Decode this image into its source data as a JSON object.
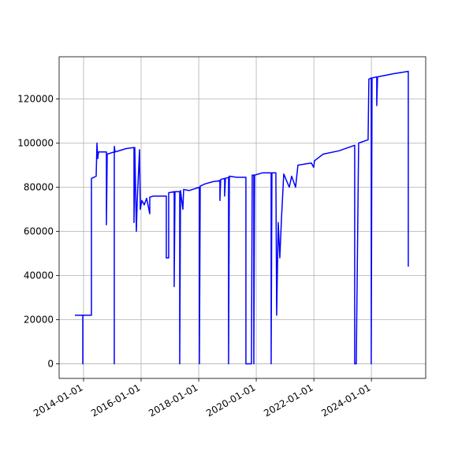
{
  "chart_data": {
    "type": "line",
    "x": [
      "2013-09-13",
      "2013-12-22",
      "2013-12-22",
      "2013-12-22",
      "2014-04-11",
      "2014-04-11",
      "2014-06-10",
      "2014-06-20",
      "2014-06-30",
      "2014-07-10",
      "2014-10-18",
      "2014-10-18",
      "2014-10-28",
      "2015-01-26",
      "2015-01-26",
      "2015-01-26",
      "2015-02-05",
      "2015-06-25",
      "2015-10-03",
      "2015-10-03",
      "2015-10-13",
      "2015-11-02",
      "2015-11-12",
      "2015-12-12",
      "2015-12-22",
      "2016-01-11",
      "2016-02-10",
      "2016-03-11",
      "2016-04-20",
      "2016-04-20",
      "2016-06-09",
      "2016-11-16",
      "2016-11-16",
      "2016-12-16",
      "2016-12-16",
      "2017-02-24",
      "2017-02-24",
      "2017-03-06",
      "2017-05-05",
      "2017-05-05",
      "2017-05-15",
      "2017-06-14",
      "2017-06-24",
      "2017-09-02",
      "2018-01-10",
      "2018-01-10",
      "2018-01-20",
      "2018-03-21",
      "2018-06-29",
      "2018-09-27",
      "2018-09-27",
      "2018-10-07",
      "2018-11-26",
      "2018-11-26",
      "2018-12-06",
      "2019-01-15",
      "2019-01-15",
      "2019-01-25",
      "2019-04-25",
      "2019-08-23",
      "2019-08-23",
      "2019-11-01",
      "2019-11-11",
      "2019-12-01",
      "2019-12-01",
      "2019-12-11",
      "2020-03-20",
      "2020-07-08",
      "2020-07-08",
      "2020-07-18",
      "2020-09-06",
      "2020-09-16",
      "2020-10-06",
      "2020-10-26",
      "2020-11-15",
      "2020-12-15",
      "2021-02-23",
      "2021-03-25",
      "2021-05-14",
      "2021-06-13",
      "2021-11-30",
      "2021-12-30",
      "2022-01-09",
      "2022-04-29",
      "2022-11-15",
      "2023-06-03",
      "2023-06-03",
      "2023-06-23",
      "2023-07-23",
      "2023-11-20",
      "2023-11-30",
      "2023-12-30",
      "2023-12-30",
      "2024-01-09",
      "2024-03-09",
      "2024-03-09",
      "2024-03-19",
      "2024-10-15",
      "2025-04-13",
      "2025-04-13"
    ],
    "series": [
      {
        "color": "#0000ff",
        "values": [
          22000,
          22000,
          0,
          22000,
          22000,
          84000,
          85000,
          100000,
          93000,
          96000,
          96000,
          63000,
          95000,
          96000,
          0,
          98500,
          96000,
          97500,
          98000,
          64000,
          98000,
          60000,
          73000,
          97000,
          70000,
          74000,
          72000,
          75000,
          68000,
          75500,
          76000,
          76000,
          48000,
          48000,
          77500,
          78000,
          35000,
          78000,
          78000,
          0,
          78500,
          70000,
          79000,
          78500,
          80000,
          0,
          80500,
          81500,
          82500,
          83000,
          74000,
          83500,
          84000,
          76000,
          84000,
          84500,
          0,
          85000,
          84500,
          84500,
          0,
          0,
          85500,
          85500,
          0,
          85500,
          86500,
          86500,
          0,
          86500,
          86500,
          22000,
          64000,
          48000,
          65000,
          86000,
          80000,
          85000,
          80000,
          90000,
          91000,
          89000,
          92000,
          95000,
          96500,
          99000,
          0,
          0,
          100000,
          101500,
          129000,
          129500,
          0,
          129500,
          130000,
          117000,
          130000,
          131500,
          132500,
          44000
        ]
      }
    ],
    "xlim": [
      "2013-02-25",
      "2025-11-20"
    ],
    "xticks": [
      "2014-01-01",
      "2016-01-01",
      "2018-01-01",
      "2020-01-01",
      "2022-01-01",
      "2024-01-01"
    ],
    "ylim": [
      -6625,
      139125
    ],
    "yticks": [
      0,
      20000,
      40000,
      60000,
      80000,
      100000,
      120000
    ],
    "grid": true
  }
}
